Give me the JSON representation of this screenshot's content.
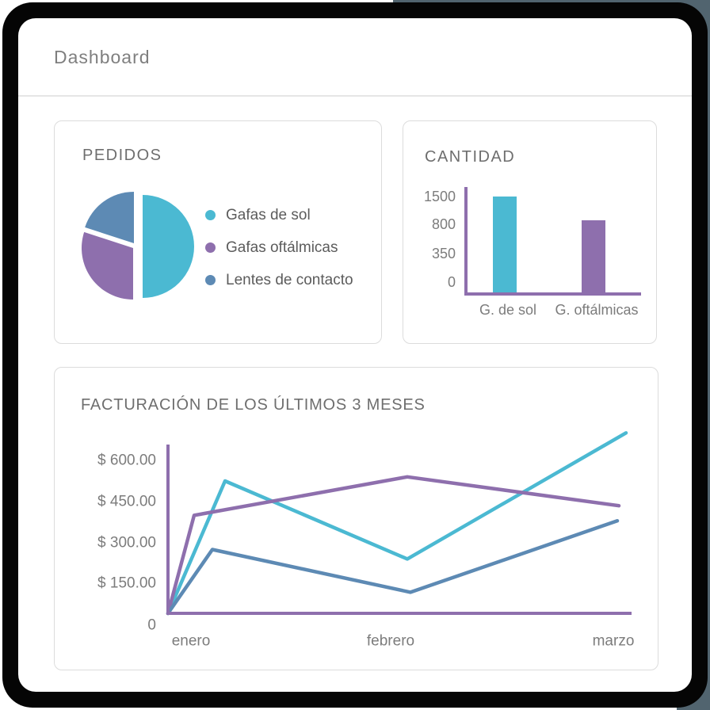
{
  "header": {
    "title": "Dashboard"
  },
  "colors": {
    "cyan": "#4BB9D2",
    "purple": "#8E6FAD",
    "blue": "#5D8AB4",
    "axis": "#8E6FAD",
    "frame": "#050505",
    "background_accent": "#51646F"
  },
  "cards": {
    "pedidos": {
      "title": "PEDIDOS"
    },
    "cantidad": {
      "title": "CANTIDAD"
    },
    "facturacion": {
      "title": "FACTURACIÓN DE LOS ÚLTIMOS 3 MESES"
    }
  },
  "chart_data": [
    {
      "id": "pedidos-pie",
      "type": "pie",
      "title": "PEDIDOS",
      "labels": [
        "Gafas de sol",
        "Gafas oftálmicas",
        "Lentes de contacto"
      ],
      "values_percent": [
        50,
        30,
        20
      ],
      "colors": [
        "#4BB9D2",
        "#8E6FAD",
        "#5D8AB4"
      ],
      "exploded": true,
      "legend_position": "right"
    },
    {
      "id": "cantidad-bar",
      "type": "bar",
      "title": "CANTIDAD",
      "categories": [
        "G. de sol",
        "G. oftálmicas"
      ],
      "values": [
        1500,
        900
      ],
      "bar_colors": [
        "#4BB9D2",
        "#8E6FAD"
      ],
      "yticks": [
        0,
        350,
        800,
        1500
      ],
      "ylim": [
        0,
        1600
      ],
      "axis_color": "#8E6FAD",
      "grid": false,
      "legend": "none"
    },
    {
      "id": "facturacion-line",
      "type": "line",
      "title": "FACTURACIÓN DE LOS ÚLTIMOS 3 MESES",
      "x": [
        "origin",
        "enero",
        "febrero",
        "marzo"
      ],
      "xtick_labels": [
        "enero",
        "febrero",
        "marzo"
      ],
      "series": [
        {
          "name": "Gafas de sol",
          "color": "#4BB9D2",
          "values": [
            0,
            525,
            240,
            700
          ]
        },
        {
          "name": "Gafas oftálmicas",
          "color": "#8E6FAD",
          "values": [
            0,
            400,
            540,
            435
          ]
        },
        {
          "name": "Lentes de contacto",
          "color": "#5D8AB4",
          "values": [
            0,
            275,
            105,
            380
          ]
        }
      ],
      "ytick_labels": [
        "$ 600.00",
        "$ 450.00",
        "$ 300.00",
        "$ 150.00",
        "0"
      ],
      "ytick_values": [
        600,
        450,
        300,
        150,
        0
      ],
      "ylim": [
        0,
        700
      ],
      "axis_color": "#8E6FAD",
      "grid": false,
      "legend": "none"
    }
  ]
}
